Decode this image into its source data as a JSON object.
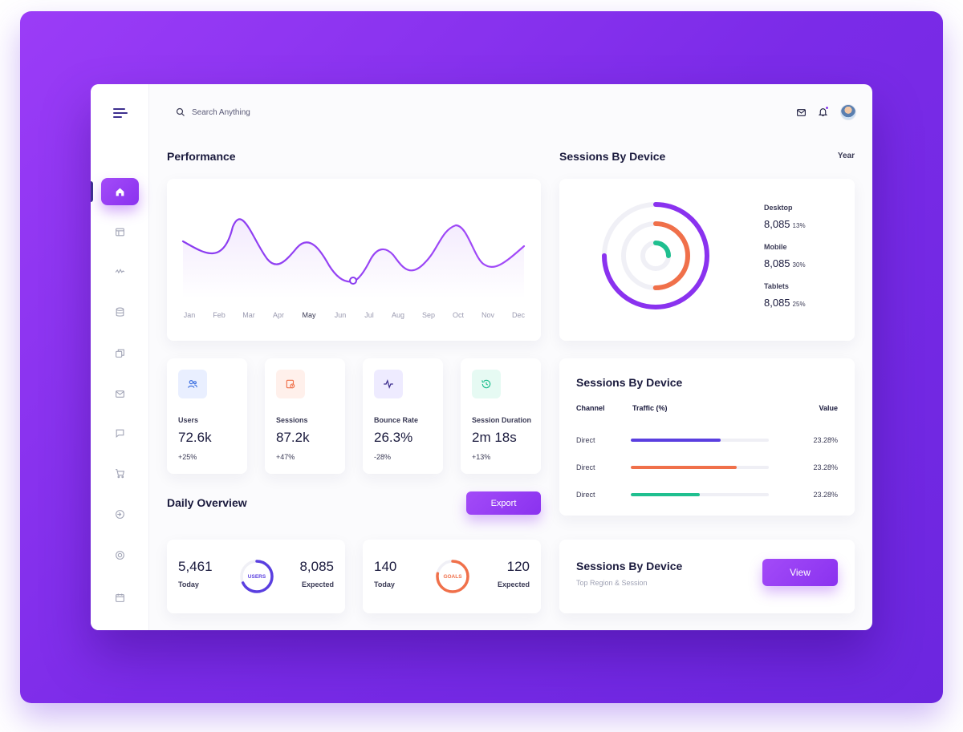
{
  "search": {
    "placeholder": "Search Anything"
  },
  "performance": {
    "title": "Performance",
    "months": [
      "Jan",
      "Feb",
      "Mar",
      "Apr",
      "May",
      "Jun",
      "Jul",
      "Aug",
      "Sep",
      "Oct",
      "Nov",
      "Dec"
    ],
    "active_month": "May"
  },
  "sessions_device": {
    "title": "Sessions By Device",
    "period": "Year",
    "items": [
      {
        "name": "Desktop",
        "value": "8,085",
        "percent": "13%"
      },
      {
        "name": "Mobile",
        "value": "8,085",
        "percent": "30%"
      },
      {
        "name": "Tablets",
        "value": "8,085",
        "percent": "25%"
      }
    ]
  },
  "stats": [
    {
      "label": "Users",
      "value": "72.6k",
      "change": "+25%",
      "icon": "users-icon",
      "color": "#3b6fe0",
      "bg": "#e9efff"
    },
    {
      "label": "Sessions",
      "value": "87.2k",
      "change": "+47%",
      "icon": "session-icon",
      "color": "#f0704a",
      "bg": "#fff0eb"
    },
    {
      "label": "Bounce Rate",
      "value": "26.3%",
      "change": "-28%",
      "icon": "pulse-icon",
      "color": "#3d2f8f",
      "bg": "#eeebff"
    },
    {
      "label": "Session Duration",
      "value": "2m 18s",
      "change": "+13%",
      "icon": "clock-icon",
      "color": "#1fbf8f",
      "bg": "#e6faf3"
    }
  ],
  "traffic": {
    "title": "Sessions By Device",
    "headers": {
      "channel": "Channel",
      "traffic": "Traffic (%)",
      "value": "Value"
    },
    "rows": [
      {
        "channel": "Direct",
        "fill": 0.65,
        "color": "#5a3fe0",
        "value": "23.28%"
      },
      {
        "channel": "Direct",
        "fill": 0.77,
        "color": "#f0704a",
        "value": "23.28%"
      },
      {
        "channel": "Direct",
        "fill": 0.5,
        "color": "#1fbf8f",
        "value": "23.28%"
      }
    ]
  },
  "daily_overview": {
    "title": "Daily Overview",
    "export_label": "Export",
    "cards": [
      {
        "today": "5,461",
        "today_label": "Today",
        "expected": "8,085",
        "expected_label": "Expected",
        "ring_label": "USERS",
        "ring_color": "#5a3fe0",
        "ring_fill": 0.68
      },
      {
        "today": "140",
        "today_label": "Today",
        "expected": "120",
        "expected_label": "Expected",
        "ring_label": "GOALS",
        "ring_color": "#f0704a",
        "ring_fill": 0.78
      }
    ]
  },
  "region": {
    "title": "Sessions By Device",
    "subtitle": "Top Region & Session",
    "view_label": "View"
  },
  "colors": {
    "accent": "#8a32ef",
    "dark": "#3d2f8f",
    "orange": "#f0704a",
    "green": "#1fbf8f"
  }
}
